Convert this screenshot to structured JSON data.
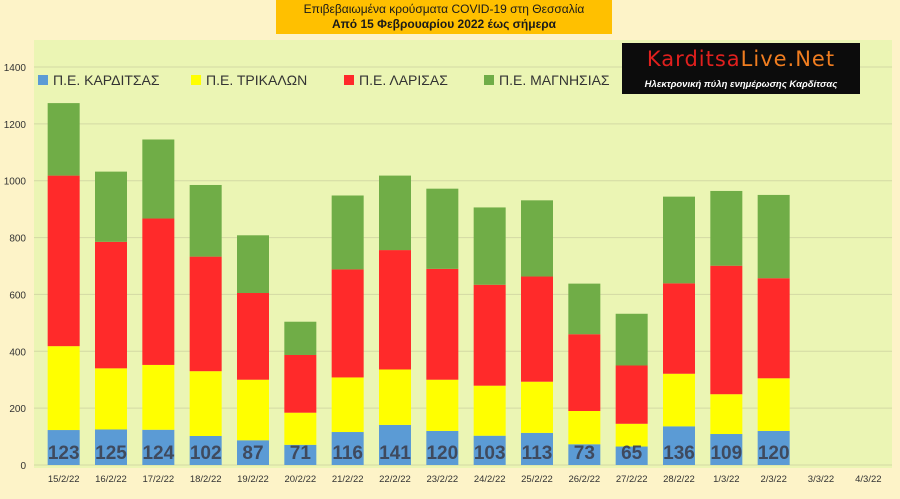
{
  "header": {
    "title_line1": "Επιβεβαιωμένα κρούσματα COVID-19 στη Θεσσαλία",
    "title_line2": "Από 15 Φεβρουαρίου 2022 έως σήμερα"
  },
  "logo": {
    "name_part1": "Karditsa",
    "name_part2": "Live.Net",
    "tagline": "Ηλεκτρονική πύλη ενημέρωσης Καρδίτσας"
  },
  "chart_data": {
    "type": "bar",
    "stacked": true,
    "title": "Επιβεβαιωμένα κρούσματα COVID-19 στη Θεσσαλία",
    "subtitle": "Από 15 Φεβρουαρίου 2022 έως σήμερα",
    "categories": [
      "15/2/22",
      "16/2/22",
      "17/2/22",
      "18/2/22",
      "19/2/22",
      "20/2/22",
      "21/2/22",
      "22/2/22",
      "23/2/22",
      "24/2/22",
      "25/2/22",
      "26/2/22",
      "27/2/22",
      "28/2/22",
      "1/3/22",
      "2/3/22",
      "3/3/22",
      "4/3/22"
    ],
    "series": [
      {
        "name": "Π.Ε. ΚΑΡΔΙΤΣΑΣ",
        "color": "#5b9bd5",
        "values": [
          123,
          125,
          124,
          102,
          87,
          71,
          116,
          141,
          120,
          103,
          113,
          73,
          65,
          136,
          109,
          120,
          null,
          null
        ]
      },
      {
        "name": "Π.Ε. ΤΡΙΚΑΛΩΝ",
        "color": "#ffff00",
        "values": [
          295,
          215,
          228,
          228,
          213,
          113,
          192,
          195,
          180,
          176,
          180,
          117,
          80,
          185,
          140,
          185,
          null,
          null
        ]
      },
      {
        "name": "Π.Ε. ΛΑΡΙΣΑΣ",
        "color": "#ff2a2a",
        "values": [
          600,
          445,
          515,
          403,
          305,
          203,
          380,
          420,
          390,
          355,
          370,
          270,
          205,
          318,
          452,
          352,
          null,
          null
        ]
      },
      {
        "name": "Π.Ε. ΜΑΓΝΗΣΙΑΣ",
        "color": "#70ad47",
        "values": [
          255,
          247,
          278,
          252,
          203,
          117,
          260,
          262,
          282,
          272,
          268,
          178,
          182,
          305,
          263,
          293,
          null,
          null
        ]
      }
    ],
    "data_labels": [
      "123",
      "125",
      "124",
      "102",
      "87",
      "71",
      "116",
      "141",
      "120",
      "103",
      "113",
      "73",
      "65",
      "136",
      "109",
      "120",
      "",
      ""
    ],
    "y_ticks": [
      "0",
      "200",
      "400",
      "600",
      "800",
      "1000",
      "1200",
      "1400"
    ],
    "ylim": [
      0,
      1500
    ],
    "grid": true,
    "legend_position": "top-left"
  },
  "colors": {
    "plot_background": "#ebf5b4",
    "page_background": "#fdf3c8",
    "title_background": "#ffc000",
    "gridline": "#d3d9a4"
  }
}
